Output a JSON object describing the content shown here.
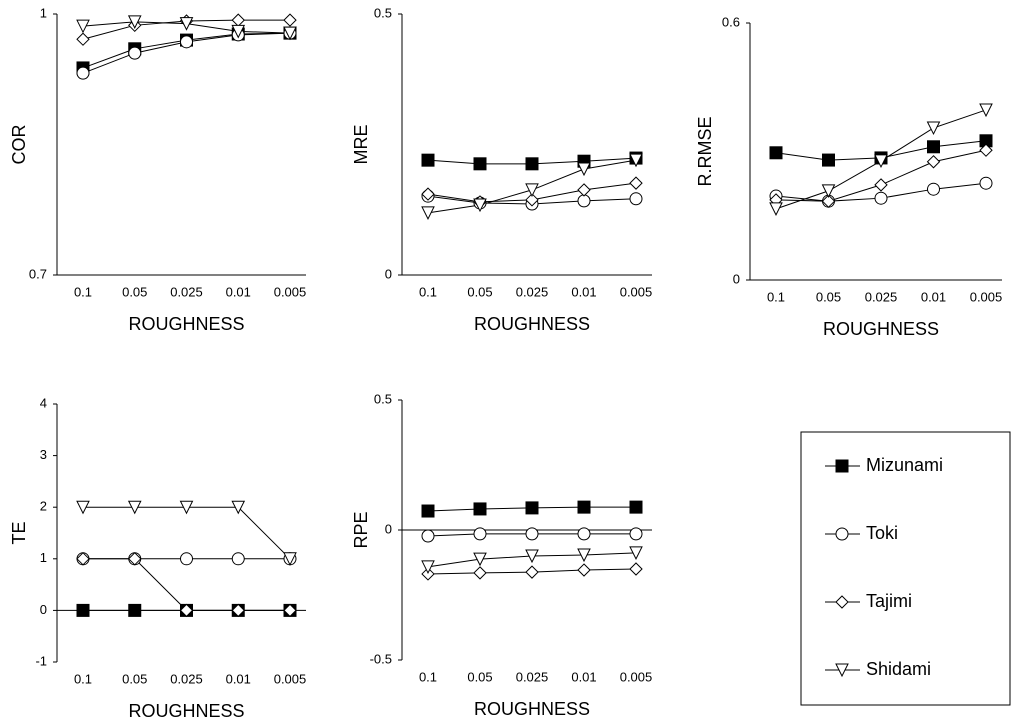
{
  "chart_data": [
    {
      "type": "line",
      "y_label": "COR",
      "x_label": "ROUGHNESS",
      "categories": [
        "0.1",
        "0.05",
        "0.025",
        "0.01",
        "0.005"
      ],
      "ylim": [
        0.7,
        1
      ],
      "yticks": [
        0.7,
        1
      ],
      "series": [
        {
          "name": "Mizunami",
          "color": "#000000",
          "marker": "square",
          "filled": true,
          "values": [
            0.938,
            0.96,
            0.97,
            0.977,
            0.978
          ]
        },
        {
          "name": "Toki",
          "color": "#000000",
          "marker": "circle",
          "filled": false,
          "values": [
            0.932,
            0.955,
            0.968,
            0.976,
            0.978
          ]
        },
        {
          "name": "Tajimi",
          "color": "#000000",
          "marker": "diamond",
          "filled": false,
          "values": [
            0.971,
            0.987,
            0.992,
            0.993,
            0.993
          ]
        },
        {
          "name": "Shidami",
          "color": "#000000",
          "marker": "triangle-down",
          "filled": false,
          "values": [
            0.986,
            0.991,
            0.989,
            0.98,
            0.978
          ]
        }
      ]
    },
    {
      "type": "line",
      "y_label": "MRE",
      "x_label": "ROUGHNESS",
      "categories": [
        "0.1",
        "0.05",
        "0.025",
        "0.01",
        "0.005"
      ],
      "ylim": [
        0,
        0.5
      ],
      "yticks": [
        0,
        0.5
      ],
      "series": [
        {
          "color": "#000000",
          "marker": "square",
          "filled": true,
          "values": [
            0.22,
            0.213,
            0.213,
            0.218,
            0.224
          ]
        },
        {
          "color": "#000000",
          "marker": "circle",
          "filled": false,
          "values": [
            0.151,
            0.138,
            0.136,
            0.142,
            0.146
          ]
        },
        {
          "color": "#000000",
          "marker": "diamond",
          "filled": false,
          "values": [
            0.155,
            0.14,
            0.144,
            0.163,
            0.176
          ]
        },
        {
          "color": "#000000",
          "marker": "triangle-down",
          "filled": false,
          "values": [
            0.119,
            0.134,
            0.163,
            0.203,
            0.22
          ]
        }
      ]
    },
    {
      "type": "line",
      "y_label": "R.RMSE",
      "x_label": "ROUGHNESS",
      "categories": [
        "0.1",
        "0.05",
        "0.025",
        "0.01",
        "0.005"
      ],
      "ylim": [
        0,
        0.6
      ],
      "yticks": [
        0,
        0.6
      ],
      "series": [
        {
          "color": "#000000",
          "marker": "square",
          "filled": true,
          "values": [
            0.297,
            0.28,
            0.285,
            0.311,
            0.325
          ]
        },
        {
          "color": "#000000",
          "marker": "circle",
          "filled": false,
          "values": [
            0.196,
            0.184,
            0.191,
            0.212,
            0.226
          ]
        },
        {
          "color": "#000000",
          "marker": "diamond",
          "filled": false,
          "values": [
            0.187,
            0.184,
            0.222,
            0.276,
            0.303
          ]
        },
        {
          "color": "#000000",
          "marker": "triangle-down",
          "filled": false,
          "values": [
            0.166,
            0.208,
            0.278,
            0.355,
            0.397
          ]
        }
      ]
    },
    {
      "type": "line",
      "y_label": "TE",
      "x_label": "ROUGHNESS",
      "categories": [
        "0.1",
        "0.05",
        "0.025",
        "0.01",
        "0.005"
      ],
      "ylim": [
        -1,
        4
      ],
      "yticks": [
        -1,
        0,
        1,
        2,
        3,
        4
      ],
      "x_axis_at": 0,
      "series": [
        {
          "color": "#000000",
          "marker": "square",
          "filled": true,
          "values": [
            0,
            0,
            0,
            0,
            0
          ]
        },
        {
          "color": "#000000",
          "marker": "circle",
          "filled": false,
          "values": [
            1,
            1,
            1,
            1,
            1
          ]
        },
        {
          "color": "#000000",
          "marker": "diamond",
          "filled": false,
          "values": [
            1,
            1,
            0,
            0,
            0
          ]
        },
        {
          "color": "#000000",
          "marker": "triangle-down",
          "filled": false,
          "values": [
            2,
            2,
            2,
            2,
            1
          ]
        }
      ]
    },
    {
      "type": "line",
      "y_label": "RPE",
      "x_label": "ROUGHNESS",
      "categories": [
        "0.1",
        "0.05",
        "0.025",
        "0.01",
        "0.005"
      ],
      "ylim": [
        -0.5,
        0.5
      ],
      "yticks": [
        -0.5,
        0,
        0.5
      ],
      "x_axis_at": 0,
      "series": [
        {
          "color": "#000000",
          "marker": "square",
          "filled": true,
          "values": [
            0.073,
            0.081,
            0.085,
            0.088,
            0.088
          ]
        },
        {
          "color": "#000000",
          "marker": "circle",
          "filled": false,
          "values": [
            -0.023,
            -0.015,
            -0.015,
            -0.015,
            -0.015
          ]
        },
        {
          "color": "#000000",
          "marker": "diamond",
          "filled": false,
          "values": [
            -0.169,
            -0.165,
            -0.162,
            -0.154,
            -0.15
          ]
        },
        {
          "color": "#000000",
          "marker": "triangle-down",
          "filled": false,
          "values": [
            -0.142,
            -0.112,
            -0.1,
            -0.096,
            -0.088
          ]
        }
      ]
    }
  ]
}
